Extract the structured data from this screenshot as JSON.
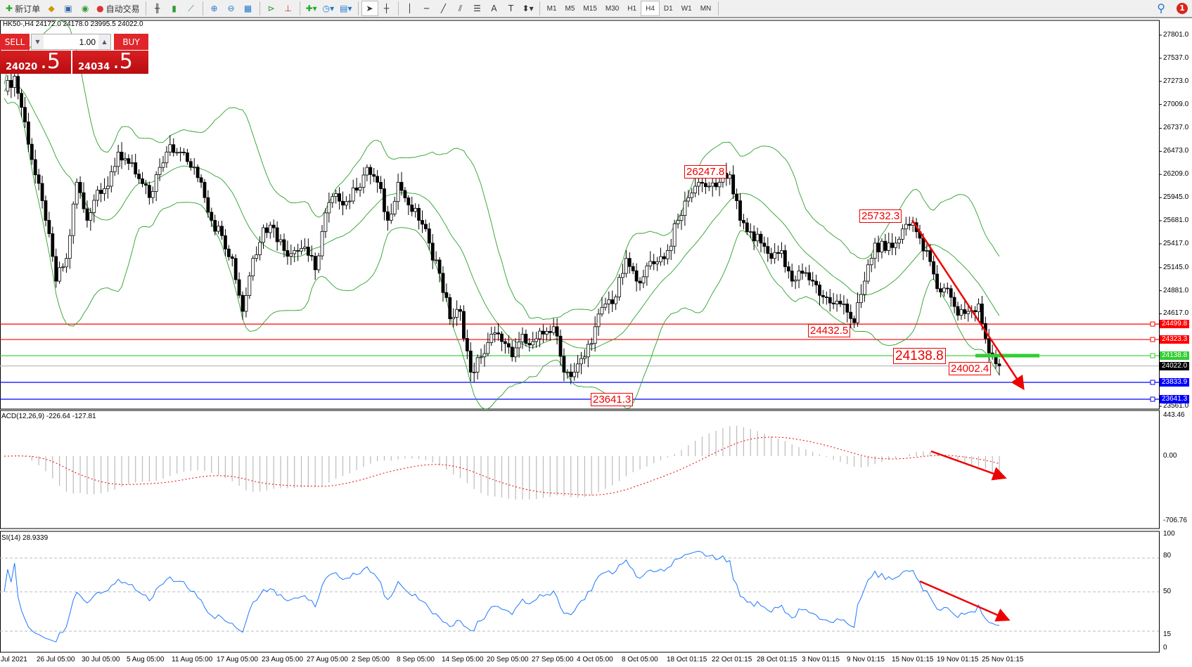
{
  "toolbar": {
    "new_order": "新订单",
    "auto_trading": "自动交易",
    "tools": [
      "bar-chart-icon",
      "candlestick-icon",
      "line-chart-icon",
      "zoom-in-icon",
      "zoom-out-icon",
      "tile-windows-icon",
      "chart-shift-icon",
      "autoscroll-icon",
      "indicators-icon",
      "periods-icon",
      "templates-icon",
      "cursor-icon",
      "crosshair-icon",
      "vertical-line-icon",
      "horizontal-line-icon",
      "trendline-icon",
      "fibonacci-fan-icon",
      "fibonacci-icon",
      "text-icon",
      "text-label-icon",
      "arrows-icon"
    ],
    "timeframes": [
      "M1",
      "M5",
      "M15",
      "M30",
      "H1",
      "H4",
      "D1",
      "W1",
      "MN"
    ],
    "active_timeframe": "H4",
    "notification_count": "1"
  },
  "info": "HK50-,H4  24172.0 24178.0 23995.5 24022.0",
  "trade_panel": {
    "sell_label": "SELL",
    "buy_label": "BUY",
    "lot": "1.00",
    "sell_big": "24020",
    "sell_pip": ".5",
    "buy_big": "24034",
    "buy_pip": ".5"
  },
  "price_axis": [
    "27801.0",
    "27537.0",
    "27273.0",
    "27009.0",
    "26737.0",
    "26473.0",
    "26209.0",
    "25945.0",
    "25681.0",
    "25417.0",
    "25145.0",
    "24881.0",
    "24617.0",
    "23561.0"
  ],
  "levels": [
    {
      "value": "24499.8",
      "color": "#ff0000"
    },
    {
      "value": "24323.3",
      "color": "#ff0000"
    },
    {
      "value": "24138.8",
      "color": "#32cd32"
    },
    {
      "value": "24022.0",
      "color": "#000000"
    },
    {
      "value": "23833.9",
      "color": "#0000ff"
    },
    {
      "value": "23641.3",
      "color": "#0000ff"
    }
  ],
  "annotations": {
    "high1": "26247.8",
    "high2": "25732.3",
    "low1": "24432.5",
    "mid": "24138.8",
    "last": "24002.4",
    "low0": "23641.3"
  },
  "macd": {
    "label": "ACD(12,26,9) -226.64 -127.81",
    "axis": [
      "443.46",
      "0.00",
      "-706.76"
    ]
  },
  "rsi": {
    "label": "SI(14) 28.9339",
    "axis": [
      "100",
      "80",
      "50",
      "15",
      "0"
    ]
  },
  "time_axis": [
    "Jul 2021",
    "26 Jul 05:00",
    "30 Jul 05:00",
    "5 Aug 05:00",
    "11 Aug 05:00",
    "17 Aug 05:00",
    "23 Aug 05:00",
    "27 Aug 05:00",
    "2 Sep 05:00",
    "8 Sep 05:00",
    "14 Sep 05:00",
    "20 Sep 05:00",
    "27 Sep 05:00",
    "4 Oct 05:00",
    "8 Oct 05:00",
    "18 Oct 01:15",
    "22 Oct 01:15",
    "28 Oct 01:15",
    "3 Nov 01:15",
    "9 Nov 01:15",
    "15 Nov 01:15",
    "19 Nov 01:15",
    "25 Nov 01:15"
  ],
  "chart_data": {
    "type": "candlestick",
    "symbol": "HK50-",
    "timeframe": "H4",
    "ylim": [
      23561.0,
      27801.0
    ],
    "closes": [
      27160,
      27330,
      26810,
      26205,
      25685,
      24990,
      25250,
      26120,
      25685,
      26030,
      26075,
      26465,
      26335,
      26160,
      25945,
      26290,
      26550,
      26465,
      26290,
      26120,
      25685,
      25510,
      25250,
      24645,
      25250,
      25600,
      25600,
      25340,
      25340,
      25380,
      25120,
      25770,
      25990,
      25900,
      26030,
      26290,
      26120,
      25685,
      26120,
      25860,
      25685,
      25425,
      25080,
      24560,
      24645,
      23950,
      24125,
      24385,
      24300,
      24125,
      24385,
      24300,
      24385,
      24470,
      23950,
      23950,
      24125,
      24470,
      24730,
      24810,
      25250,
      24990,
      25165,
      25210,
      25340,
      25685,
      25945,
      26120,
      26075,
      26120,
      26205,
      25685,
      25555,
      25425,
      25250,
      25340,
      24990,
      25080,
      24990,
      24810,
      24730,
      24730,
      24515,
      24990,
      25425,
      25340,
      25425,
      25640,
      25555,
      25340,
      24905,
      24905,
      24600,
      24645,
      24730,
      24170,
      24022
    ],
    "indicators": [
      "Bollinger Bands",
      "MACD(12,26,9)",
      "RSI(14)"
    ]
  }
}
